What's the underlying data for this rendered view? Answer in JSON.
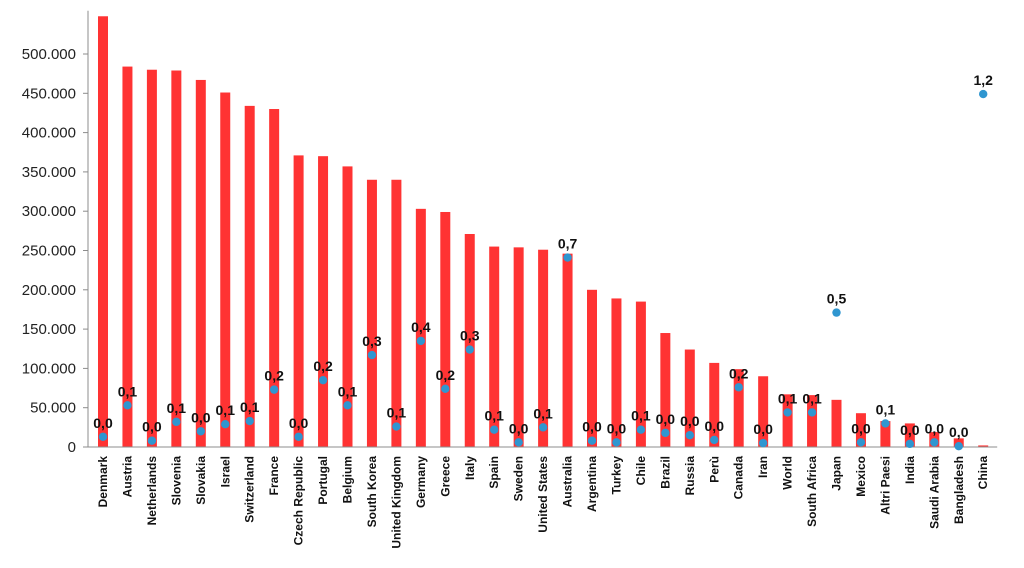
{
  "chart_data": {
    "type": "bar",
    "title": "",
    "xlabel": "",
    "ylabel": "",
    "ylim": [
      0,
      550000
    ],
    "yticks": [
      0,
      50000,
      100000,
      150000,
      200000,
      250000,
      300000,
      350000,
      400000,
      450000,
      500000
    ],
    "ytick_labels": [
      "0",
      "50.000",
      "100.000",
      "150.000",
      "200.000",
      "250.000",
      "300.000",
      "350.000",
      "400.000",
      "450.000",
      "500.000"
    ],
    "grid": false,
    "legend": "none",
    "categories": [
      "Denmark",
      "Austria",
      "Netherlands",
      "Slovenia",
      "Slovakia",
      "Israel",
      "Switzerland",
      "France",
      "Czech Republic",
      "Portugal",
      "Belgium",
      "South Korea",
      "United Kingdom",
      "Germany",
      "Greece",
      "Italy",
      "Spain",
      "Sweden",
      "United States",
      "Australia",
      "Argentina",
      "Turkey",
      "Chile",
      "Brazil",
      "Russia",
      "Perù",
      "Canada",
      "Iran",
      "World",
      "South Africa",
      "Japan",
      "Mexico",
      "Altri Paesi",
      "India",
      "Saudi Arabia",
      "Bangladesh",
      "China"
    ],
    "series": [
      {
        "kind": "bar",
        "color": "#ff3333",
        "values": [
          548000,
          484000,
          480000,
          479000,
          467000,
          451000,
          434000,
          430000,
          371000,
          370000,
          357000,
          340000,
          340000,
          303000,
          299000,
          271000,
          255000,
          254000,
          251000,
          246000,
          200000,
          189000,
          185000,
          145000,
          124000,
          107000,
          99000,
          90000,
          67000,
          66000,
          60000,
          43000,
          33000,
          30000,
          19000,
          11000,
          2000
        ]
      },
      {
        "kind": "point",
        "color": "#2f96d0",
        "values": [
          13000,
          53000,
          8000,
          32000,
          20000,
          29000,
          33000,
          73000,
          13000,
          85000,
          53000,
          117000,
          26000,
          135000,
          74000,
          124000,
          22000,
          6000,
          25000,
          241000,
          8000,
          6000,
          22000,
          18000,
          15000,
          9000,
          76000,
          5000,
          44000,
          44000,
          171000,
          6000,
          30000,
          4000,
          6000,
          1000,
          449000
        ],
        "labels": [
          "0,0",
          "0,1",
          "0,0",
          "0,1",
          "0,0",
          "0,1",
          "0,1",
          "0,2",
          "0,0",
          "0,2",
          "0,1",
          "0,3",
          "0,1",
          "0,4",
          "0,2",
          "0,3",
          "0,1",
          "0,0",
          "0,1",
          "0,7",
          "0,0",
          "0,0",
          "0,1",
          "0,0",
          "0,0",
          "0,0",
          "0,2",
          "0,0",
          "0,1",
          "0,1",
          "0,5",
          "0,0",
          "0,1",
          "0,0",
          "0,0",
          "0,0",
          "1,2"
        ]
      }
    ]
  },
  "colors": {
    "bar": "#ff3333",
    "dot": "#2f96d0",
    "axis": "#8c8c8c"
  }
}
